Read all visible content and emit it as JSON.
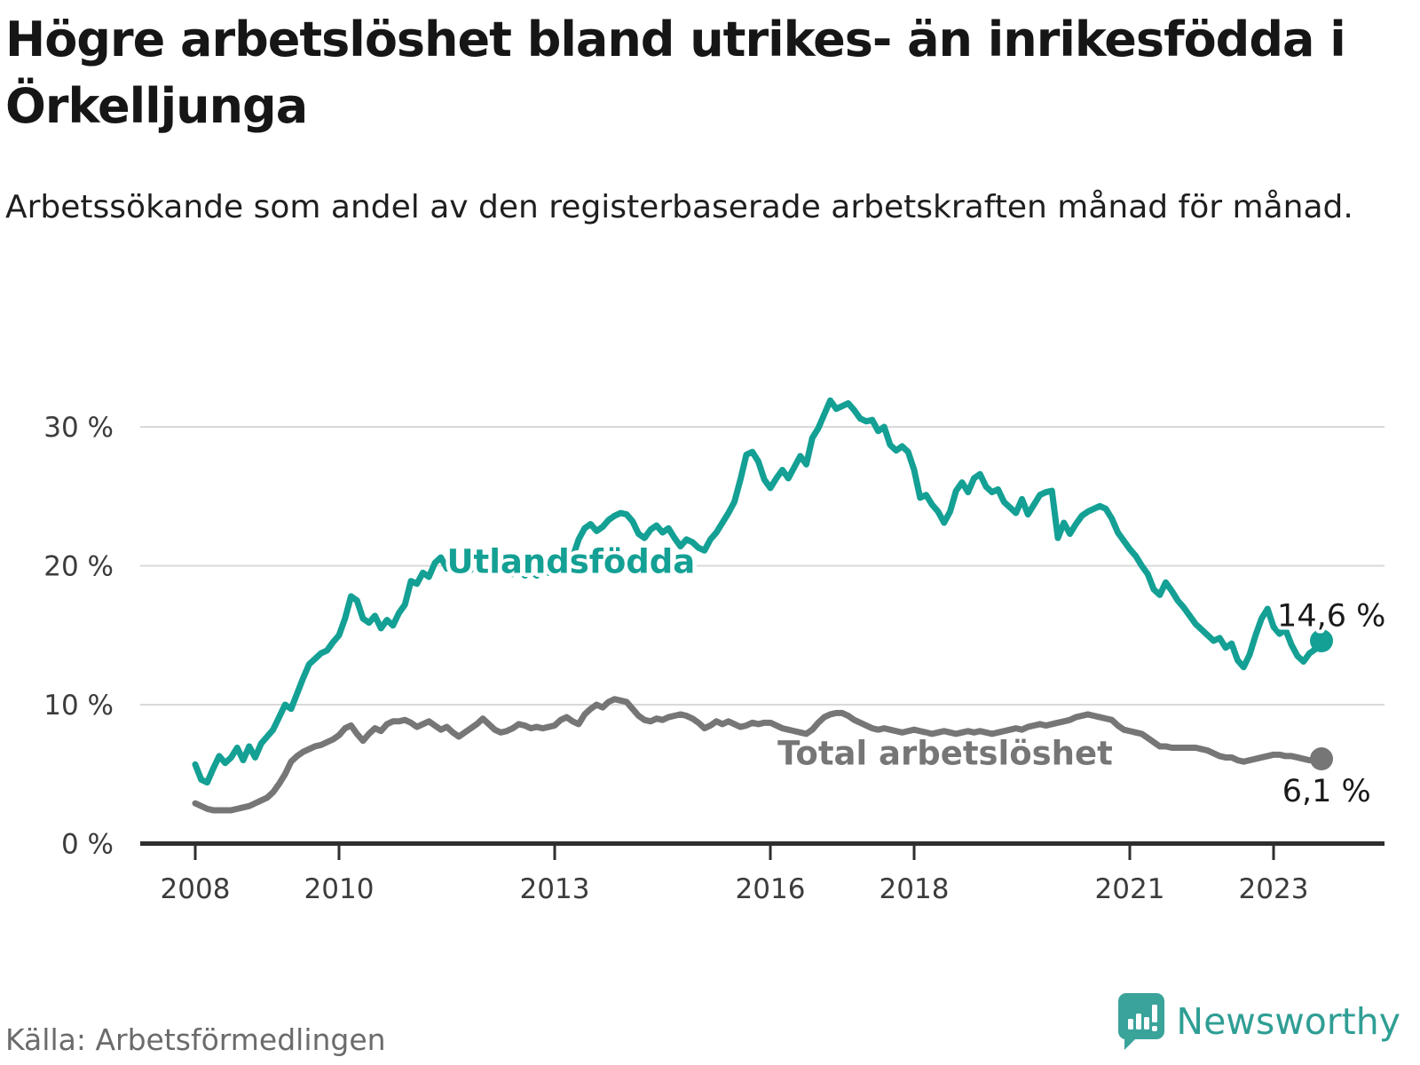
{
  "header": {
    "title": "Högre arbetslöshet bland utrikes- än inrikesfödda i Örkelljunga",
    "subtitle": "Arbetssökande som andel av den registerbaserade arbetskraften månad för månad."
  },
  "footer": {
    "source": "Källa: Arbetsförmedlingen",
    "brand": "Newsworthy",
    "brand_color": "#2f9e94",
    "logo_icon": "speech-bubble-bar-chart-icon"
  },
  "chart_data": {
    "type": "line",
    "x_start_year": 2008,
    "x_points_per_year": 12,
    "x_end_label_note": "monthly series Jan 2008 - Sep 2023",
    "ylim": [
      0,
      33
    ],
    "grid": "horizontal-only",
    "y_ticks": [
      {
        "value": 0,
        "label": "0 %"
      },
      {
        "value": 10,
        "label": "10 %"
      },
      {
        "value": 20,
        "label": "20 %"
      },
      {
        "value": 30,
        "label": "30 %"
      }
    ],
    "x_ticks": [
      {
        "year": 2008,
        "label": "2008"
      },
      {
        "year": 2010,
        "label": "2010"
      },
      {
        "year": 2013,
        "label": "2013"
      },
      {
        "year": 2016,
        "label": "2016"
      },
      {
        "year": 2018,
        "label": "2018"
      },
      {
        "year": 2021,
        "label": "2021"
      },
      {
        "year": 2023,
        "label": "2023"
      }
    ],
    "series": [
      {
        "name": "Utlandsfödda",
        "color": "#14a094",
        "end_label": "14,6 %",
        "label_anchor": {
          "year": 2011.5,
          "value": 19.5
        },
        "end_label_anchor": {
          "year": 2023.05,
          "value": 15.65
        },
        "values": [
          5.7,
          4.6,
          4.4,
          5.4,
          6.3,
          5.8,
          6.2,
          6.9,
          6.0,
          7.0,
          6.2,
          7.2,
          7.7,
          8.2,
          9.1,
          10.0,
          9.7,
          10.8,
          11.9,
          12.9,
          13.3,
          13.7,
          13.9,
          14.5,
          15.0,
          16.2,
          17.8,
          17.5,
          16.2,
          15.9,
          16.4,
          15.5,
          16.1,
          15.7,
          16.6,
          17.2,
          18.9,
          18.7,
          19.5,
          19.2,
          20.2,
          20.6,
          19.8,
          20.1,
          19.4,
          20.0,
          19.7,
          20.2,
          20.8,
          20.5,
          20.1,
          19.6,
          19.9,
          19.4,
          19.8,
          19.3,
          19.6,
          19.3,
          19.7,
          19.5,
          19.8,
          20.3,
          20.9,
          20.6,
          21.9,
          22.7,
          23.0,
          22.5,
          22.8,
          23.3,
          23.6,
          23.8,
          23.7,
          23.2,
          22.3,
          22.0,
          22.6,
          22.9,
          22.4,
          22.7,
          22.0,
          21.4,
          21.9,
          21.7,
          21.3,
          21.1,
          21.9,
          22.4,
          23.1,
          23.8,
          24.6,
          26.2,
          28.0,
          28.2,
          27.5,
          26.2,
          25.6,
          26.3,
          26.9,
          26.3,
          27.1,
          27.9,
          27.3,
          29.2,
          29.9,
          30.9,
          31.9,
          31.3,
          31.5,
          31.7,
          31.2,
          30.6,
          30.4,
          30.5,
          29.7,
          30.0,
          28.7,
          28.3,
          28.6,
          28.2,
          26.9,
          24.9,
          25.1,
          24.4,
          23.9,
          23.1,
          23.9,
          25.4,
          26.0,
          25.3,
          26.3,
          26.6,
          25.7,
          25.3,
          25.5,
          24.6,
          24.2,
          23.8,
          24.8,
          23.7,
          24.4,
          25.1,
          25.3,
          25.4,
          22.0,
          23.1,
          22.3,
          23.0,
          23.6,
          23.9,
          24.1,
          24.3,
          24.1,
          23.4,
          22.4,
          21.8,
          21.2,
          20.7,
          20.0,
          19.4,
          18.3,
          17.9,
          18.8,
          18.2,
          17.5,
          17.0,
          16.4,
          15.8,
          15.4,
          15.0,
          14.6,
          14.8,
          14.1,
          14.4,
          13.2,
          12.7,
          13.6,
          15.0,
          16.2,
          16.9,
          15.6,
          15.1,
          15.4,
          14.3,
          13.5,
          13.1,
          13.7,
          14.0,
          14.6
        ]
      },
      {
        "name": "Total arbetslöshet",
        "color": "#767676",
        "end_label": "6,1 %",
        "label_anchor": {
          "year": 2016.1,
          "value": 5.7
        },
        "end_label_anchor": {
          "year": 2023.12,
          "value": 3.05
        },
        "values": [
          2.9,
          2.7,
          2.5,
          2.4,
          2.4,
          2.4,
          2.4,
          2.5,
          2.6,
          2.7,
          2.9,
          3.1,
          3.3,
          3.7,
          4.3,
          5.0,
          5.9,
          6.3,
          6.6,
          6.8,
          7.0,
          7.1,
          7.3,
          7.5,
          7.8,
          8.3,
          8.5,
          7.9,
          7.4,
          7.9,
          8.3,
          8.1,
          8.6,
          8.8,
          8.8,
          8.9,
          8.7,
          8.4,
          8.6,
          8.8,
          8.5,
          8.2,
          8.4,
          8.0,
          7.7,
          8.0,
          8.3,
          8.6,
          9.0,
          8.6,
          8.2,
          8.0,
          8.1,
          8.3,
          8.6,
          8.5,
          8.3,
          8.4,
          8.3,
          8.4,
          8.5,
          8.9,
          9.1,
          8.8,
          8.6,
          9.3,
          9.7,
          10.0,
          9.8,
          10.2,
          10.4,
          10.3,
          10.2,
          9.7,
          9.2,
          8.9,
          8.8,
          9.0,
          8.9,
          9.1,
          9.2,
          9.3,
          9.2,
          9.0,
          8.7,
          8.3,
          8.5,
          8.8,
          8.6,
          8.8,
          8.6,
          8.4,
          8.5,
          8.7,
          8.6,
          8.7,
          8.7,
          8.5,
          8.3,
          8.2,
          8.1,
          8.0,
          7.9,
          8.2,
          8.7,
          9.1,
          9.3,
          9.4,
          9.4,
          9.2,
          8.9,
          8.7,
          8.5,
          8.3,
          8.2,
          8.3,
          8.2,
          8.1,
          8.0,
          8.1,
          8.2,
          8.1,
          8.0,
          7.9,
          8.0,
          8.1,
          8.0,
          7.9,
          8.0,
          8.1,
          8.0,
          8.1,
          8.0,
          7.9,
          8.0,
          8.1,
          8.2,
          8.3,
          8.2,
          8.4,
          8.5,
          8.6,
          8.5,
          8.6,
          8.7,
          8.8,
          8.9,
          9.1,
          9.2,
          9.3,
          9.2,
          9.1,
          9.0,
          8.9,
          8.5,
          8.2,
          8.1,
          8.0,
          7.9,
          7.6,
          7.3,
          7.0,
          7.0,
          6.9,
          6.9,
          6.9,
          6.9,
          6.9,
          6.8,
          6.7,
          6.5,
          6.3,
          6.2,
          6.2,
          6.0,
          5.9,
          6.0,
          6.1,
          6.2,
          6.3,
          6.4,
          6.4,
          6.3,
          6.3,
          6.2,
          6.1,
          6.0,
          6.0,
          6.1
        ]
      }
    ]
  }
}
